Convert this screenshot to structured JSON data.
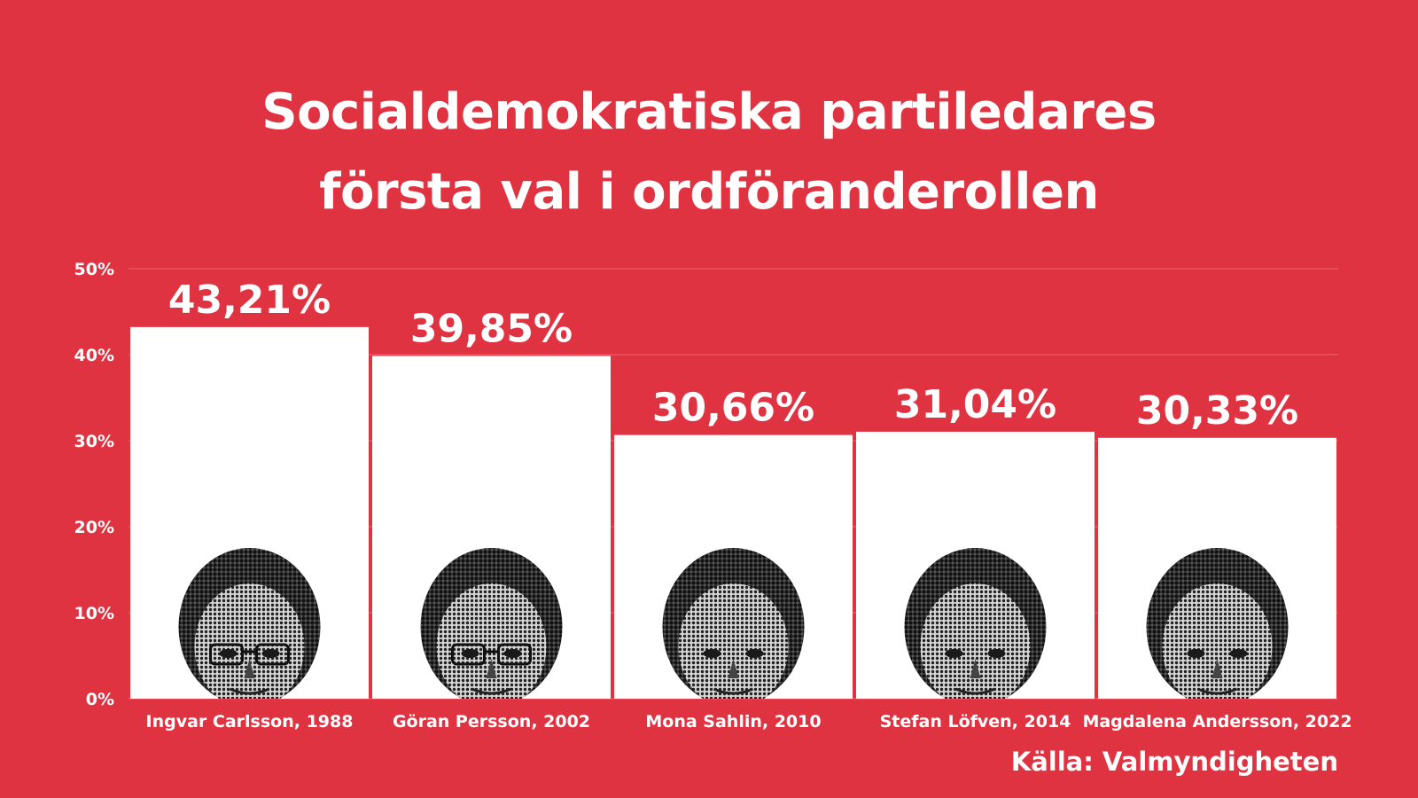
{
  "colors": {
    "background": "#e03342",
    "bar": "#ffffff",
    "text": "#ffffff",
    "grid": "#ee6670",
    "portrait_light": "#c9c9c9",
    "portrait_dark": "#2b2b2b"
  },
  "source": "Källa: Valmyndigheten",
  "chart_data": {
    "type": "bar",
    "title": [
      "Socialdemokratiska partiledares",
      "första val i ordföranderollen"
    ],
    "xlabel": "",
    "ylabel": "",
    "ylim": [
      0,
      50
    ],
    "yticks": [
      0,
      10,
      20,
      30,
      40,
      50
    ],
    "ytick_labels": [
      "0%",
      "10%",
      "20%",
      "30%",
      "40%",
      "50%"
    ],
    "grid": true,
    "categories": [
      "Ingvar Carlsson, 1988",
      "Göran Persson, 2002",
      "Mona Sahlin, 2010",
      "Stefan Löfven, 2014",
      "Magdalena Andersson, 2022"
    ],
    "values": [
      43.21,
      39.85,
      30.66,
      31.04,
      30.33
    ],
    "value_labels": [
      "43,21%",
      "39,85%",
      "30,66%",
      "31,04%",
      "30,33%"
    ],
    "bar_images": [
      "portrait-ingvar-carlsson",
      "portrait-goran-persson",
      "portrait-mona-sahlin",
      "portrait-stefan-lofven",
      "portrait-magdalena-andersson"
    ]
  }
}
